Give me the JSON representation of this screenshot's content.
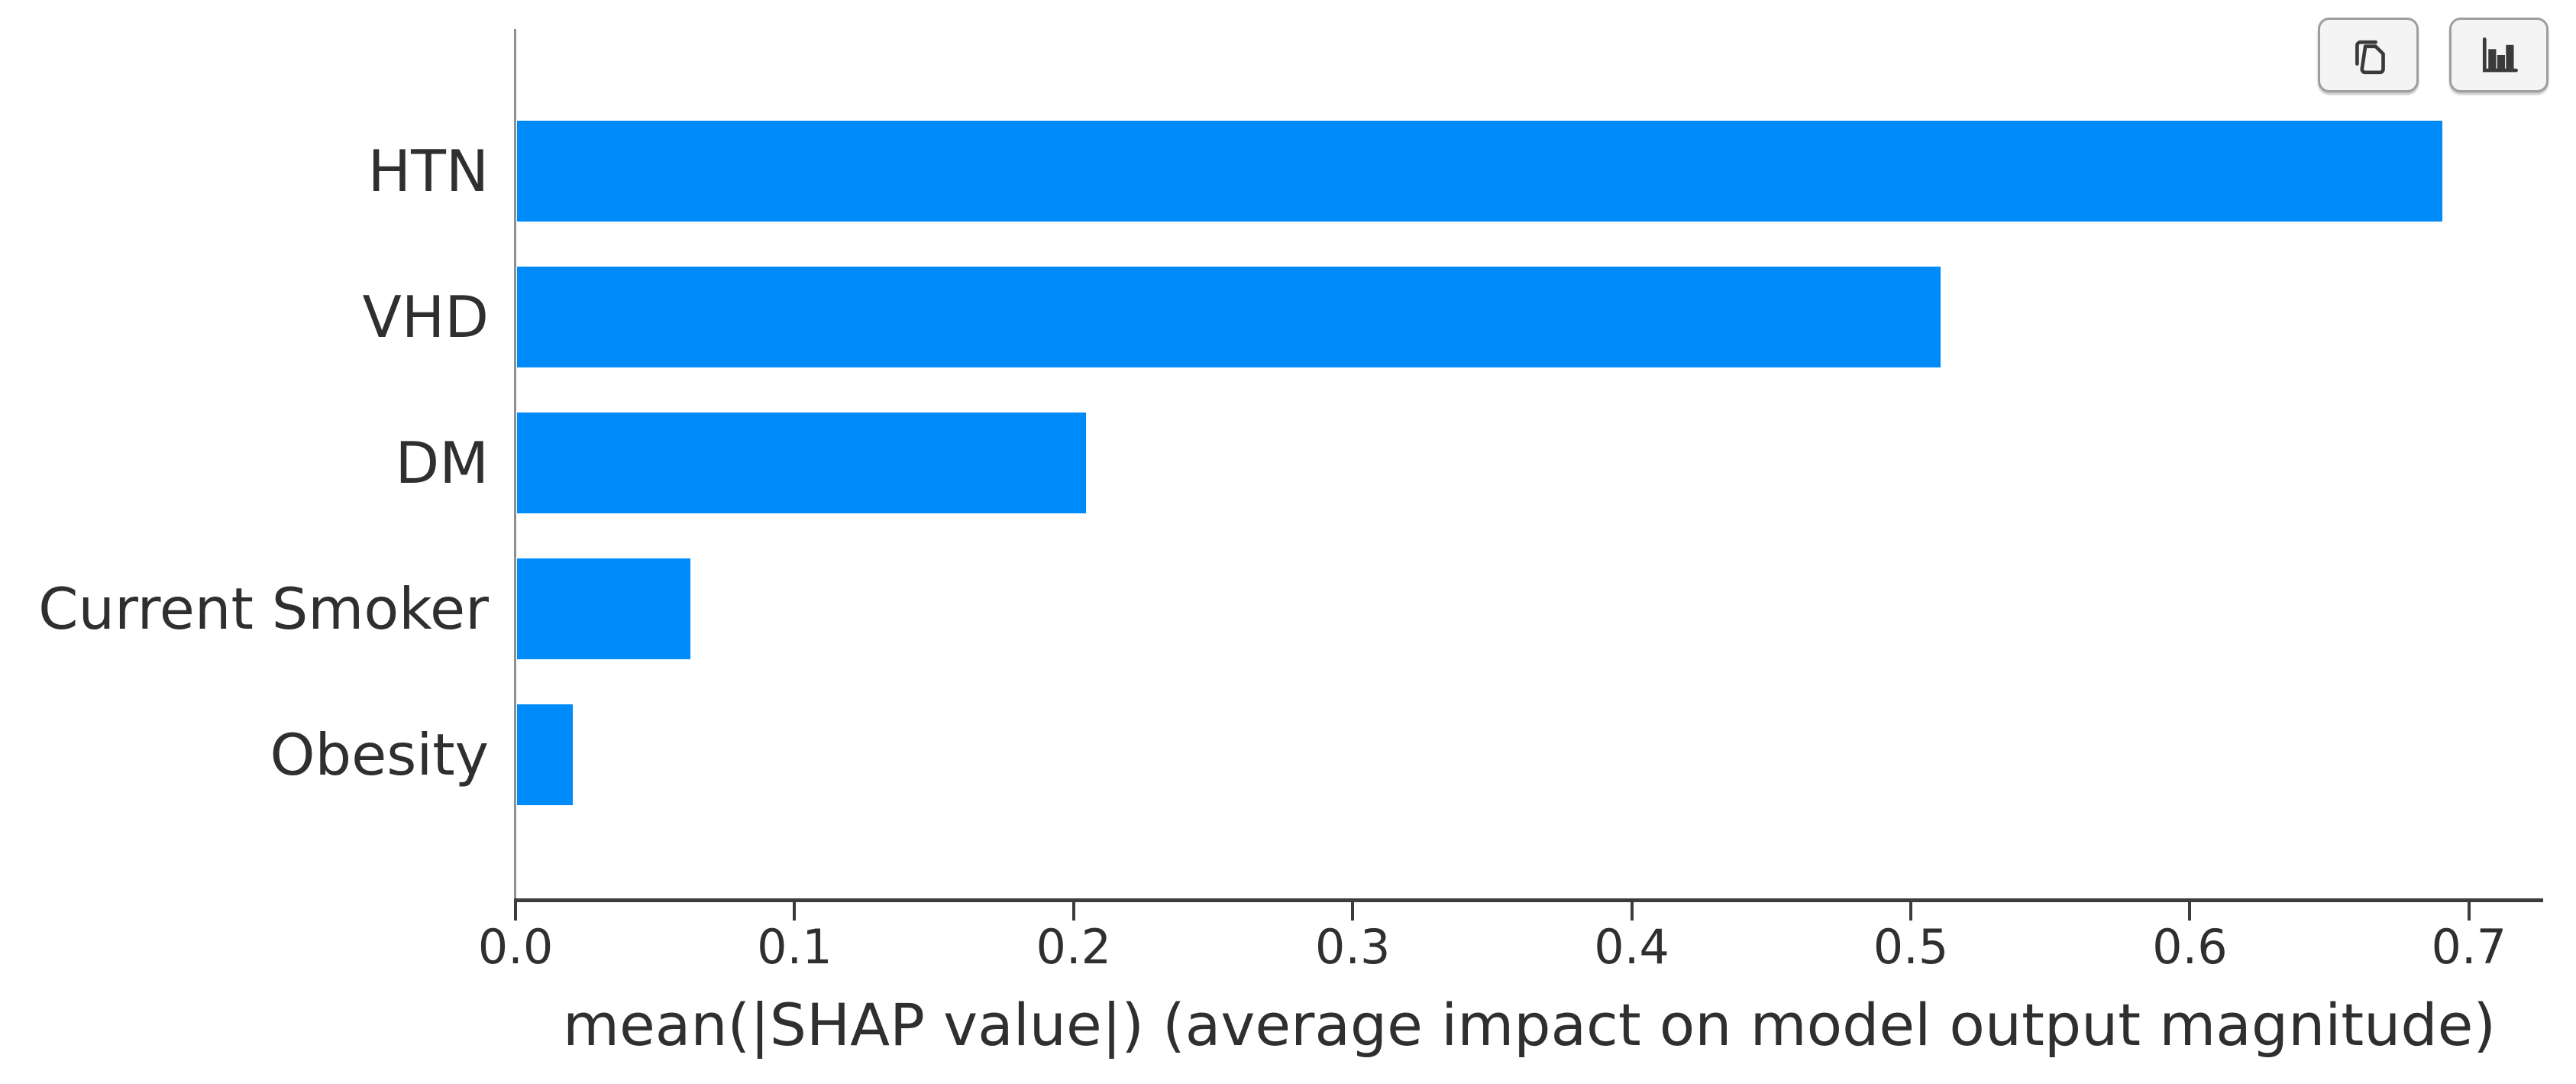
{
  "toolbar": {
    "copy_button": {
      "icon": "copy-icon",
      "label": ""
    },
    "chart_button": {
      "icon": "bar-chart-icon",
      "label": ""
    }
  },
  "chart_data": {
    "type": "bar",
    "orientation": "horizontal",
    "title": "",
    "xlabel": "mean(|SHAP value|) (average impact on model output magnitude)",
    "ylabel": "",
    "categories": [
      "HTN",
      "VHD",
      "DM",
      "Current Smoker",
      "Obesity"
    ],
    "values": [
      0.69,
      0.51,
      0.204,
      0.062,
      0.02
    ],
    "xlim": [
      0,
      0.727
    ],
    "xticks": [
      0.0,
      0.1,
      0.2,
      0.3,
      0.4,
      0.5,
      0.6,
      0.7
    ],
    "xtick_labels": [
      "0.0",
      "0.1",
      "0.2",
      "0.3",
      "0.4",
      "0.5",
      "0.6",
      "0.7"
    ],
    "bar_color": "#008bfb",
    "grid": false,
    "legend": null
  },
  "colors": {
    "bar": "#008bfb",
    "axis_spine": "#3c3c3c",
    "left_spine": "#8f8f8f",
    "text": "#2f2f2f",
    "button_bg": "#f4f4f4",
    "button_border": "#9e9e9e"
  }
}
